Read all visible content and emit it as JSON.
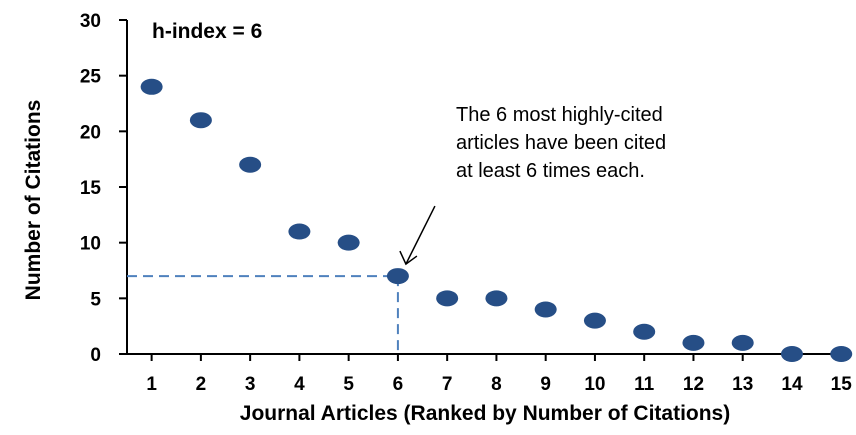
{
  "chart_data": {
    "type": "scatter",
    "title": "",
    "xlabel": "Journal Articles (Ranked by Number of Citations)",
    "ylabel": "Number of Citations",
    "x": [
      1,
      2,
      3,
      4,
      5,
      6,
      7,
      8,
      9,
      10,
      11,
      12,
      13,
      14,
      15
    ],
    "y": [
      24,
      21,
      17,
      11,
      10,
      7,
      5,
      5,
      4,
      3,
      2,
      1,
      1,
      0,
      0
    ],
    "xlim": [
      0.5,
      15.3
    ],
    "ylim": [
      0,
      30
    ],
    "yticks": [
      0,
      5,
      10,
      15,
      20,
      25,
      30
    ],
    "xticks": [
      1,
      2,
      3,
      4,
      5,
      6,
      7,
      8,
      9,
      10,
      11,
      12,
      13,
      14,
      15
    ],
    "grid": false,
    "marker_color": "#264e86",
    "reference_line_color": "#4f81bd",
    "h_index": {
      "label": "h-index = 6",
      "x": 6,
      "y": 7
    },
    "annotation": {
      "lines": [
        "The 6 most highly-cited",
        "articles have been cited",
        "at least 6 times each."
      ],
      "points_to": {
        "x": 6,
        "y": 7
      }
    }
  }
}
